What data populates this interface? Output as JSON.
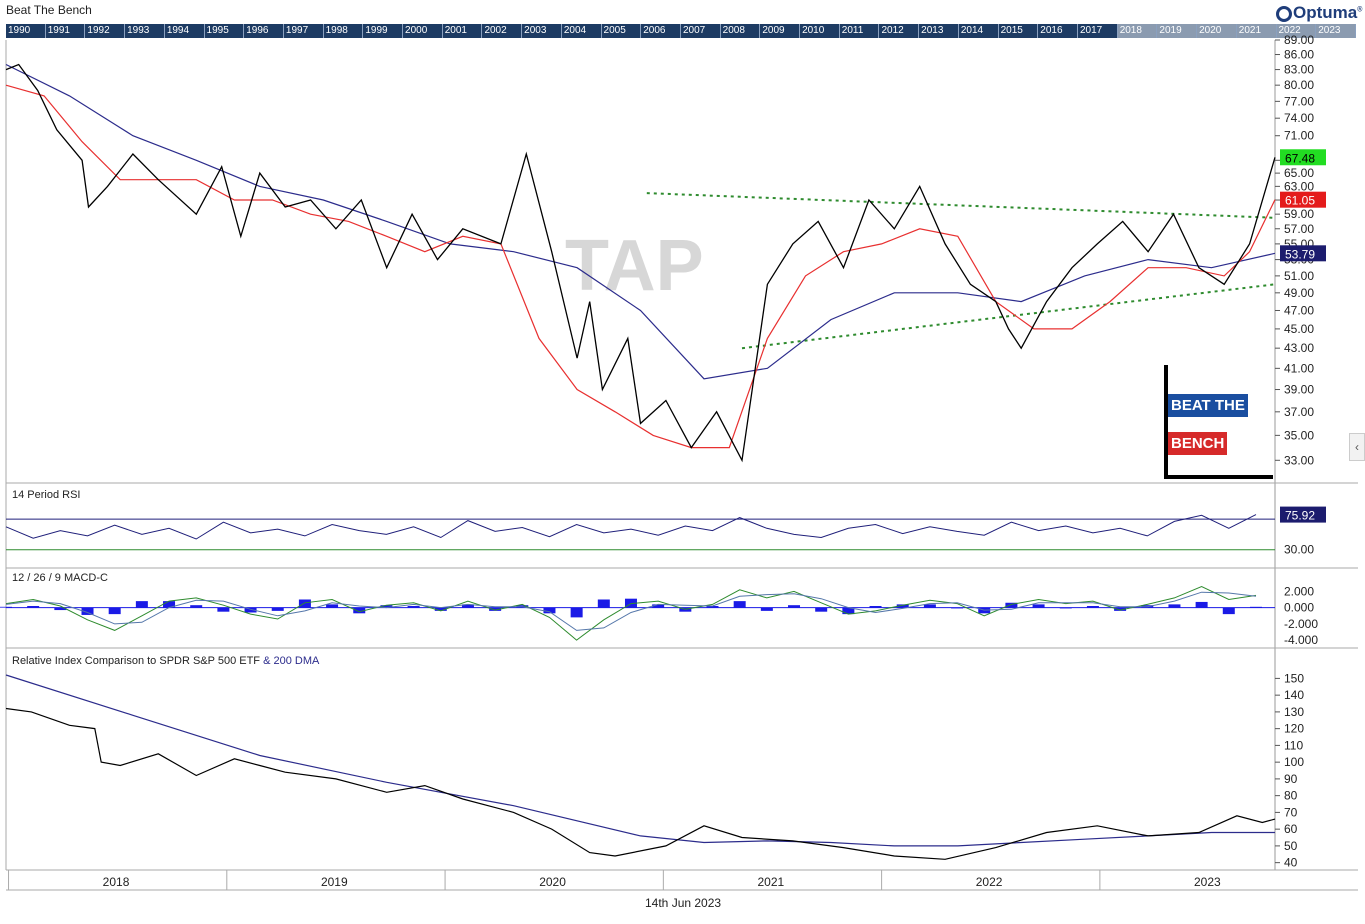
{
  "header": {
    "title": "Beat The Bench",
    "brand": "Optuma"
  },
  "year_bar": [
    "1990",
    "1991",
    "1992",
    "1993",
    "1994",
    "1995",
    "1996",
    "1997",
    "1998",
    "1999",
    "2000",
    "2001",
    "2002",
    "2003",
    "2004",
    "2005",
    "2006",
    "2007",
    "2008",
    "2009",
    "2010",
    "2011",
    "2012",
    "2013",
    "2014",
    "2015",
    "2016",
    "2017",
    "2018",
    "2019",
    "2020",
    "2021",
    "2022",
    "2023"
  ],
  "watermark": "TAP",
  "logo": {
    "line1": "BEAT THE",
    "line2": "BENCH"
  },
  "footer_date": "14th Jun 2023",
  "colors": {
    "price": "#000000",
    "ma_fast": "#e83030",
    "ma_slow": "#2c2c8c",
    "trend": "#2e8b2e",
    "macd_hist": "#1a1ae6",
    "rsi_line": "#1f1f7a",
    "badge_green": "#22dd22",
    "badge_red": "#e41b1b",
    "badge_navy": "#1c1c6e",
    "logo_blue": "#1a4ea0",
    "logo_red": "#d62a2a"
  },
  "chart_data": [
    {
      "type": "line",
      "x_ticks": [
        "2018",
        "2019",
        "2020",
        "2021",
        "2022",
        "2023"
      ],
      "y_ticks": [
        33,
        35,
        37,
        39,
        41,
        43,
        45,
        47,
        49,
        51,
        53,
        55,
        57,
        59,
        61,
        63,
        65,
        67,
        71,
        74,
        77,
        80,
        83,
        86,
        89
      ],
      "ylim": [
        31.5,
        89
      ],
      "log_scale": true,
      "last_values": {
        "price": "67.48",
        "ma_fast": "61.05",
        "ma_slow": "53.79"
      },
      "series": [
        {
          "key": "price",
          "x": [
            0,
            0.01,
            0.025,
            0.04,
            0.06,
            0.065,
            0.08,
            0.1,
            0.12,
            0.15,
            0.17,
            0.185,
            0.2,
            0.22,
            0.24,
            0.26,
            0.28,
            0.3,
            0.32,
            0.34,
            0.36,
            0.39,
            0.41,
            0.43,
            0.45,
            0.46,
            0.47,
            0.49,
            0.5,
            0.52,
            0.54,
            0.56,
            0.58,
            0.6,
            0.62,
            0.64,
            0.66,
            0.68,
            0.7,
            0.72,
            0.74,
            0.76,
            0.78,
            0.79,
            0.8,
            0.82,
            0.84,
            0.86,
            0.88,
            0.9,
            0.92,
            0.94,
            0.96,
            0.98,
            1
          ],
          "y": [
            83,
            84,
            79,
            72,
            67,
            60,
            63,
            68,
            64,
            59,
            66,
            56,
            65,
            60,
            61,
            57,
            61,
            52,
            59,
            53,
            57,
            55,
            68,
            54,
            42,
            48,
            39,
            44,
            36,
            38,
            34,
            37,
            33,
            50,
            55,
            58,
            52,
            61,
            57,
            63,
            55,
            50,
            48,
            45,
            43,
            48,
            52,
            55,
            58,
            54,
            59,
            52,
            50,
            55,
            67.48
          ]
        },
        {
          "key": "ma_fast",
          "x": [
            0,
            0.03,
            0.06,
            0.09,
            0.12,
            0.15,
            0.18,
            0.21,
            0.24,
            0.27,
            0.3,
            0.33,
            0.36,
            0.39,
            0.42,
            0.45,
            0.48,
            0.51,
            0.54,
            0.57,
            0.6,
            0.63,
            0.66,
            0.69,
            0.72,
            0.75,
            0.78,
            0.81,
            0.84,
            0.87,
            0.9,
            0.93,
            0.96,
            0.98,
            1
          ],
          "y": [
            80,
            78,
            70,
            64,
            64,
            64,
            61,
            61,
            59,
            58,
            56,
            54,
            56,
            55,
            44,
            39,
            37,
            35,
            34,
            34,
            44,
            51,
            54,
            55,
            57,
            56,
            48,
            45,
            45,
            48,
            52,
            52,
            51,
            54,
            61.05
          ]
        },
        {
          "key": "ma_slow",
          "x": [
            0,
            0.05,
            0.1,
            0.15,
            0.2,
            0.25,
            0.3,
            0.35,
            0.4,
            0.45,
            0.5,
            0.55,
            0.6,
            0.65,
            0.7,
            0.75,
            0.8,
            0.85,
            0.9,
            0.95,
            1
          ],
          "y": [
            84,
            78,
            71,
            67,
            63,
            61,
            58,
            55,
            54,
            52,
            47,
            40,
            41,
            46,
            49,
            49,
            48,
            51,
            53,
            52,
            53.79
          ]
        },
        {
          "key": "trend_upper",
          "x": [
            0.505,
            1
          ],
          "y": [
            62,
            58.5
          ]
        },
        {
          "key": "trend_lower",
          "x": [
            0.58,
            1
          ],
          "y": [
            43,
            50
          ]
        }
      ]
    },
    {
      "type": "line",
      "title": "14 Period RSI",
      "y_ticks": [
        30,
        80
      ],
      "tick_labels": [
        "30.00",
        "80.00"
      ],
      "levels": [
        30,
        70
      ],
      "last_value": "75.92",
      "values": [
        60,
        45,
        55,
        48,
        62,
        50,
        58,
        44,
        66,
        52,
        57,
        48,
        63,
        55,
        50,
        60,
        46,
        68,
        54,
        59,
        47,
        63,
        52,
        57,
        49,
        61,
        55,
        72,
        58,
        50,
        46,
        58,
        63,
        51,
        60,
        54,
        49,
        66,
        55,
        61,
        52,
        58,
        48,
        67,
        75,
        58,
        75.92
      ]
    },
    {
      "type": "area",
      "title": "12 / 26 / 9 MACD-C",
      "y_ticks": [
        2,
        0,
        -2,
        -4
      ],
      "tick_labels": [
        "2.000",
        "0.000",
        "-2.000",
        "-4.000"
      ],
      "macd": [
        0.5,
        1.0,
        0.2,
        -1.5,
        -2.8,
        -1.0,
        0.8,
        1.2,
        0.3,
        -0.8,
        -1.4,
        0.6,
        1.0,
        -0.5,
        0.3,
        0.6,
        -0.4,
        0.8,
        -0.3,
        0.4,
        -1.2,
        -4.0,
        -1.5,
        0.5,
        0.8,
        -0.2,
        0.4,
        2.2,
        1.2,
        2.0,
        0.6,
        -0.8,
        -0.4,
        0.3,
        0.9,
        0.5,
        -1.0,
        0.4,
        1.0,
        0.5,
        0.8,
        -0.3,
        0.4,
        1.2,
        2.6,
        1.0,
        1.5
      ],
      "signal": [
        0.4,
        0.8,
        0.5,
        -0.6,
        -2.0,
        -1.8,
        0.0,
        0.9,
        0.8,
        -0.2,
        -1.0,
        -0.4,
        0.6,
        0.2,
        0.0,
        0.4,
        0.0,
        0.4,
        0.1,
        0.1,
        -0.5,
        -2.8,
        -2.5,
        -0.6,
        0.4,
        0.3,
        0.2,
        1.4,
        1.6,
        1.7,
        1.1,
        0.0,
        -0.6,
        -0.1,
        0.5,
        0.6,
        -0.3,
        -0.2,
        0.6,
        0.6,
        0.6,
        0.1,
        0.1,
        0.8,
        1.9,
        1.8,
        1.4
      ]
    },
    {
      "type": "line",
      "title": "Relative Index Comparison to SPDR S&P 500 ETF",
      "title_suffix": "& 200 DMA",
      "y_ticks": [
        40,
        50,
        60,
        70,
        80,
        90,
        100,
        110,
        120,
        130,
        140,
        150
      ],
      "ylim": [
        38,
        158
      ],
      "x_ticks": [
        "2018",
        "2019",
        "2020",
        "2021",
        "2022",
        "2023"
      ],
      "series": [
        {
          "key": "relative",
          "x": [
            0,
            0.02,
            0.05,
            0.07,
            0.075,
            0.09,
            0.12,
            0.15,
            0.18,
            0.2,
            0.22,
            0.26,
            0.3,
            0.33,
            0.36,
            0.4,
            0.43,
            0.46,
            0.48,
            0.52,
            0.55,
            0.58,
            0.62,
            0.66,
            0.7,
            0.74,
            0.78,
            0.82,
            0.86,
            0.9,
            0.94,
            0.97,
            0.99,
            1
          ],
          "y": [
            132,
            130,
            122,
            120,
            100,
            98,
            105,
            92,
            102,
            98,
            94,
            90,
            82,
            86,
            78,
            70,
            60,
            46,
            44,
            50,
            62,
            55,
            53,
            49,
            44,
            42,
            49,
            58,
            62,
            56,
            58,
            68,
            64,
            66
          ]
        },
        {
          "key": "dma200",
          "x": [
            0,
            0.1,
            0.2,
            0.3,
            0.4,
            0.5,
            0.55,
            0.6,
            0.65,
            0.7,
            0.75,
            0.8,
            0.85,
            0.9,
            0.95,
            1
          ],
          "y": [
            152,
            128,
            104,
            88,
            74,
            56,
            52,
            53,
            52,
            50,
            50,
            52,
            54,
            56,
            58,
            58
          ]
        }
      ]
    }
  ]
}
